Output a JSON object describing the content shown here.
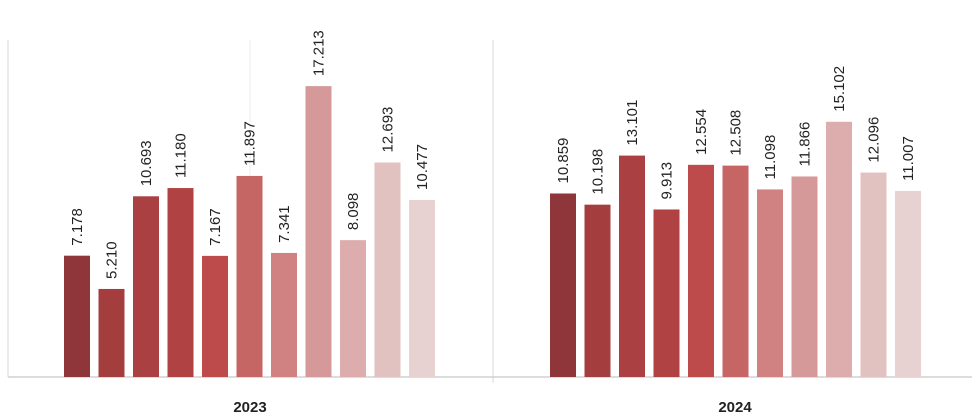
{
  "chart_data": {
    "type": "bar",
    "ylim": [
      0,
      20
    ],
    "grid": false,
    "groups": [
      {
        "label": "2023",
        "values": [
          7.178,
          5.21,
          10.693,
          11.18,
          7.167,
          11.897,
          7.341,
          17.213,
          8.098,
          12.693,
          10.477
        ],
        "value_labels": [
          "7.178",
          "5.210",
          "10.693",
          "11.180",
          "7.167",
          "11.897",
          "7.341",
          "17.213",
          "8.098",
          "12.693",
          "10.477"
        ],
        "colors": [
          "#8e3639",
          "#a43d3e",
          "#aa4042",
          "#b04244",
          "#bd4b4b",
          "#c56665",
          "#d08182",
          "#d69999",
          "#ddadad",
          "#e2c1c1",
          "#e8d1d1"
        ]
      },
      {
        "label": "2024",
        "values": [
          10.859,
          10.198,
          13.101,
          9.913,
          12.554,
          12.508,
          11.098,
          11.866,
          15.102,
          12.096,
          11.007
        ],
        "value_labels": [
          "10.859",
          "10.198",
          "13.101",
          "9.913",
          "12.554",
          "12.508",
          "11.098",
          "11.866",
          "15.102",
          "12.096",
          "11.007"
        ],
        "colors": [
          "#8e3639",
          "#a43d3e",
          "#aa4042",
          "#b04244",
          "#bd4b4b",
          "#c56665",
          "#d08182",
          "#d69999",
          "#ddadad",
          "#e2c1c1",
          "#e8d1d1"
        ]
      }
    ]
  }
}
